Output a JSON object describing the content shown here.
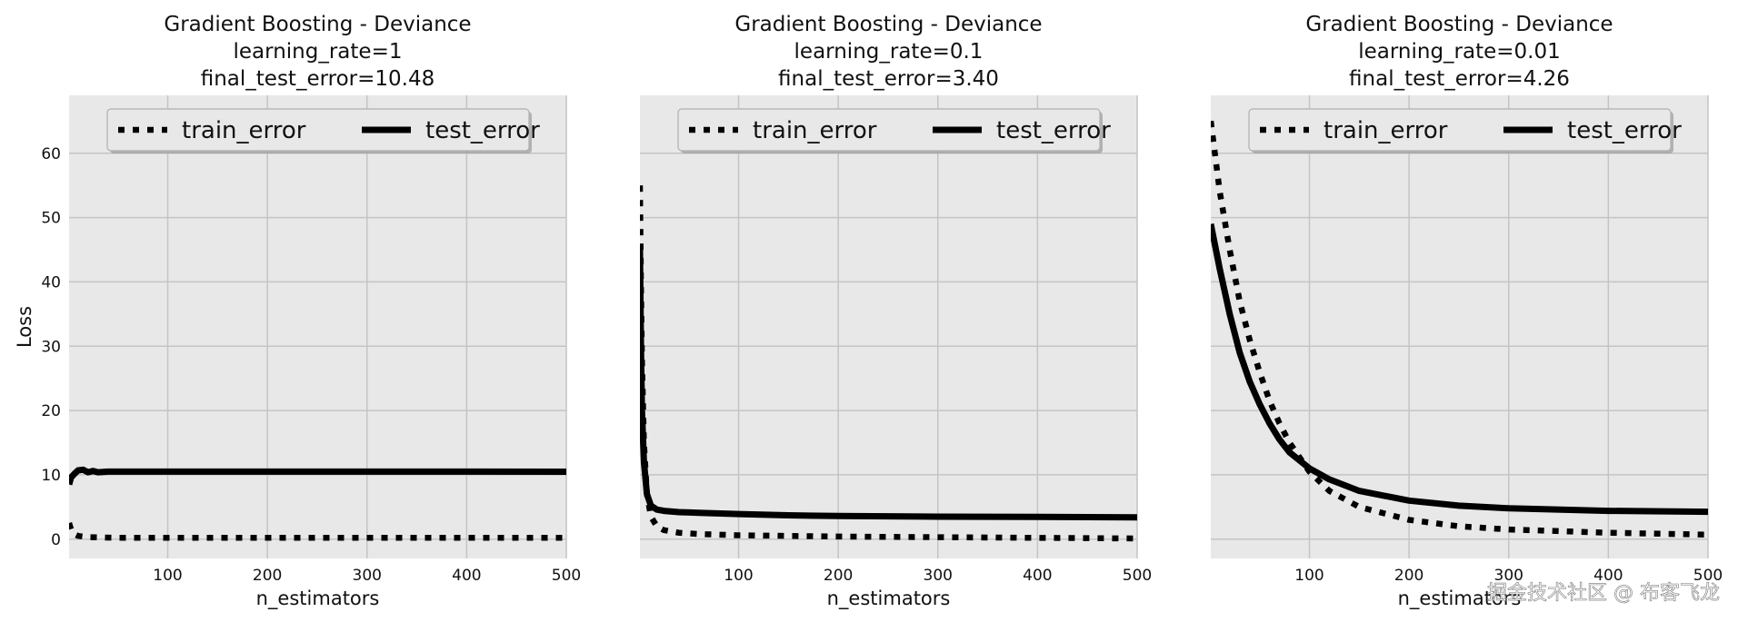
{
  "chart_data": [
    {
      "type": "line",
      "title": [
        "Gradient Boosting - Deviance",
        "learning_rate=1",
        "final_test_error=10.48"
      ],
      "xlabel": "n_estimators",
      "ylabel": "Loss",
      "xlim": [
        1,
        500
      ],
      "ylim": [
        -3,
        69
      ],
      "xticks": [
        100,
        200,
        300,
        400,
        500
      ],
      "yticks": [
        0,
        10,
        20,
        30,
        40,
        50,
        60
      ],
      "show_yticks": true,
      "grid": true,
      "legend": "top",
      "series": [
        {
          "name": "train_error",
          "style": "dotted",
          "x": [
            1,
            3,
            6,
            10,
            20,
            50,
            100,
            200,
            300,
            400,
            500
          ],
          "y": [
            2.5,
            1.5,
            0.8,
            0.5,
            0.3,
            0.2,
            0.2,
            0.2,
            0.2,
            0.2,
            0.2
          ]
        },
        {
          "name": "test_error",
          "style": "solid",
          "x": [
            1,
            3,
            6,
            10,
            15,
            20,
            25,
            30,
            40,
            60,
            100,
            200,
            300,
            400,
            500
          ],
          "y": [
            8.5,
            9.6,
            10.1,
            10.7,
            10.8,
            10.4,
            10.6,
            10.4,
            10.5,
            10.5,
            10.5,
            10.5,
            10.5,
            10.5,
            10.48
          ]
        }
      ]
    },
    {
      "type": "line",
      "title": [
        "Gradient Boosting - Deviance",
        "learning_rate=0.1",
        "final_test_error=3.40"
      ],
      "xlabel": "n_estimators",
      "ylabel": "",
      "xlim": [
        1,
        500
      ],
      "ylim": [
        -3,
        69
      ],
      "xticks": [
        100,
        200,
        300,
        400,
        500
      ],
      "yticks": [
        0,
        10,
        20,
        30,
        40,
        50,
        60
      ],
      "show_yticks": false,
      "grid": true,
      "legend": "top",
      "series": [
        {
          "name": "train_error",
          "style": "dotted",
          "x": [
            1,
            2,
            3,
            5,
            8,
            12,
            18,
            25,
            40,
            60,
            100,
            150,
            200,
            300,
            400,
            500
          ],
          "y": [
            55,
            40,
            28,
            15,
            7,
            3.5,
            2,
            1.4,
            1,
            0.8,
            0.6,
            0.5,
            0.4,
            0.3,
            0.2,
            0.1
          ]
        },
        {
          "name": "test_error",
          "style": "solid",
          "x": [
            1,
            2,
            3,
            5,
            8,
            12,
            18,
            25,
            40,
            60,
            100,
            150,
            200,
            300,
            400,
            500
          ],
          "y": [
            45,
            30,
            20,
            12,
            7,
            5.2,
            4.6,
            4.4,
            4.2,
            4.1,
            3.9,
            3.7,
            3.6,
            3.5,
            3.45,
            3.4
          ]
        }
      ]
    },
    {
      "type": "line",
      "title": [
        "Gradient Boosting - Deviance",
        "learning_rate=0.01",
        "final_test_error=4.26"
      ],
      "xlabel": "n_estimators",
      "ylabel": "",
      "xlim": [
        1,
        500
      ],
      "ylim": [
        -3,
        69
      ],
      "xticks": [
        100,
        200,
        300,
        400,
        500
      ],
      "yticks": [
        0,
        10,
        20,
        30,
        40,
        50,
        60
      ],
      "show_yticks": false,
      "grid": true,
      "legend": "top",
      "series": [
        {
          "name": "train_error",
          "style": "dotted",
          "x": [
            1,
            10,
            20,
            30,
            40,
            50,
            60,
            70,
            80,
            100,
            120,
            150,
            200,
            250,
            300,
            400,
            500
          ],
          "y": [
            65,
            54,
            45,
            37,
            31,
            26,
            21.5,
            18,
            15,
            10.5,
            7.5,
            5,
            3,
            2,
            1.5,
            1,
            0.7
          ]
        },
        {
          "name": "test_error",
          "style": "solid",
          "x": [
            1,
            10,
            20,
            30,
            40,
            50,
            60,
            70,
            80,
            100,
            120,
            150,
            200,
            250,
            300,
            400,
            500
          ],
          "y": [
            49,
            42,
            35,
            29,
            24.5,
            21,
            18,
            15.5,
            13.5,
            11,
            9.3,
            7.5,
            6,
            5.2,
            4.8,
            4.4,
            4.26
          ]
        }
      ]
    }
  ],
  "watermark": "掘金技术社区 @ 布客飞龙"
}
